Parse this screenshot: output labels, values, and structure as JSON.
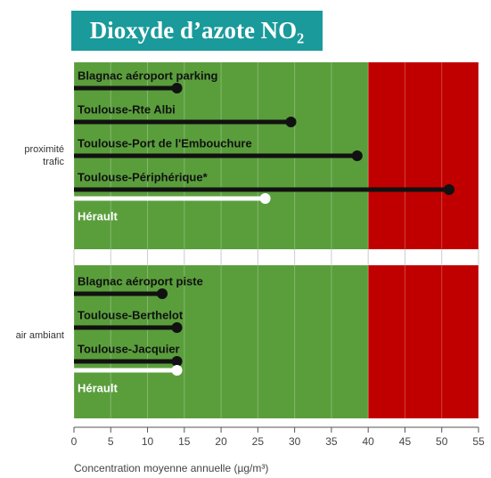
{
  "chart_data": {
    "type": "lollipop",
    "title": "Dioxyde d’azote NO₂",
    "xlabel": "Concentration moyenne annuelle (µg/m³)",
    "xlim": [
      0,
      55
    ],
    "xticks": [
      0,
      5,
      10,
      15,
      20,
      25,
      30,
      35,
      40,
      45,
      50,
      55
    ],
    "threshold": 40,
    "below_color": "#5a9e3c",
    "above_color": "#c00000",
    "groups": [
      {
        "name": "proximité trafic",
        "categories": [
          "Blagnac aéroport parking",
          "Toulouse-Rte Albi",
          "Toulouse-Port de l'Embouchure",
          "Toulouse-Périphérique*",
          "Hérault"
        ],
        "values": [
          14,
          29.5,
          38.5,
          51,
          26
        ],
        "colors": [
          "#111111",
          "#111111",
          "#111111",
          "#111111",
          "#ffffff"
        ]
      },
      {
        "name": "air ambiant",
        "categories": [
          "Blagnac aéroport piste",
          "Toulouse-Berthelot",
          "Toulouse-Jacquier",
          "Hérault"
        ],
        "values": [
          12,
          14,
          14,
          14
        ],
        "colors": [
          "#111111",
          "#111111",
          "#111111",
          "#ffffff"
        ]
      }
    ]
  }
}
